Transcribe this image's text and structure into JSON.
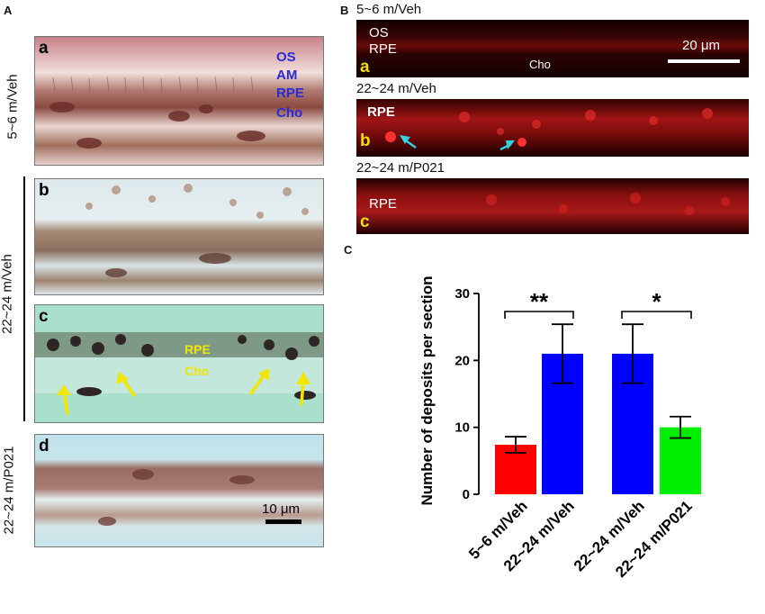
{
  "panel_A": {
    "label": "A",
    "rows": {
      "young": "5~6 m/Veh",
      "old_veh": "22~24 m/Veh",
      "old_p021": "22~24 m/P021"
    },
    "subpanels": {
      "a": {
        "letter": "a",
        "labels": [
          "OS",
          "AM",
          "RPE",
          "Cho"
        ]
      },
      "b": {
        "letter": "b"
      },
      "c": {
        "letter": "c",
        "labels": [
          "RPE",
          "Cho"
        ]
      },
      "d": {
        "letter": "d",
        "scale_bar": "10 μm"
      }
    }
  },
  "panel_B": {
    "label": "B",
    "rows": [
      {
        "letter": "a",
        "title": "5~6 m/Veh",
        "labels": [
          "OS",
          "RPE",
          "Cho"
        ],
        "scale_bar": "20 μm"
      },
      {
        "letter": "b",
        "title": "22~24 m/Veh",
        "labels": [
          "RPE"
        ]
      },
      {
        "letter": "c",
        "title": "22~24 m/P021",
        "labels": [
          "RPE"
        ]
      }
    ]
  },
  "panel_C": {
    "label": "C"
  },
  "chart_data": {
    "type": "bar",
    "ylabel": "Number of deposits per section",
    "ylim": [
      0,
      30
    ],
    "yticks": [
      0,
      10,
      20,
      30
    ],
    "categories": [
      "5~6 m/Veh",
      "22~24 m/Veh",
      "22~24 m/Veh",
      "22~24 m/P021"
    ],
    "values": [
      7.4,
      21.0,
      21.0,
      10.0
    ],
    "errors": [
      1.2,
      4.4,
      4.4,
      1.6
    ],
    "colors": [
      "#ff0000",
      "#0000ff",
      "#0000ff",
      "#00ee00"
    ],
    "significance": [
      {
        "from": 0,
        "to": 1,
        "label": "**"
      },
      {
        "from": 2,
        "to": 3,
        "label": "*"
      }
    ]
  }
}
